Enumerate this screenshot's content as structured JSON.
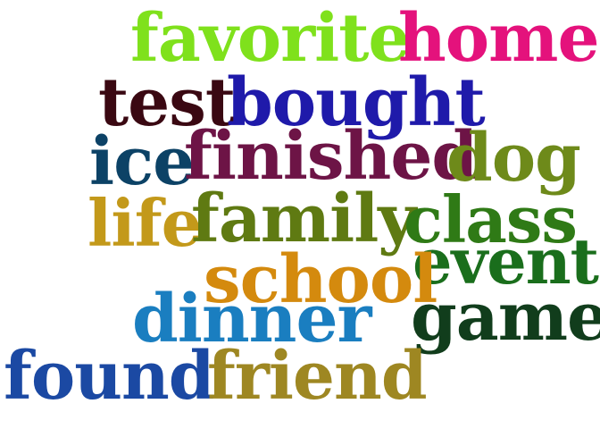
{
  "words": [
    {
      "text": "favorite",
      "color": "#7fe11c"
    },
    {
      "text": "home",
      "color": "#e4127c"
    },
    {
      "text": "test",
      "color": "#3a0812"
    },
    {
      "text": "bought",
      "color": "#1f1aaa"
    },
    {
      "text": "ice",
      "color": "#0c4266"
    },
    {
      "text": "finished",
      "color": "#6d1446"
    },
    {
      "text": "dog",
      "color": "#6e8a1a"
    },
    {
      "text": "life",
      "color": "#c3991a"
    },
    {
      "text": "family",
      "color": "#5f7a12"
    },
    {
      "text": "class",
      "color": "#2f7a16"
    },
    {
      "text": "event",
      "color": "#1a6e1c"
    },
    {
      "text": "school",
      "color": "#d48a0e"
    },
    {
      "text": "dinner",
      "color": "#1a7ec0"
    },
    {
      "text": "game",
      "color": "#113d1c"
    },
    {
      "text": "found",
      "color": "#1b49a3"
    },
    {
      "text": "friend",
      "color": "#9e8722"
    }
  ]
}
